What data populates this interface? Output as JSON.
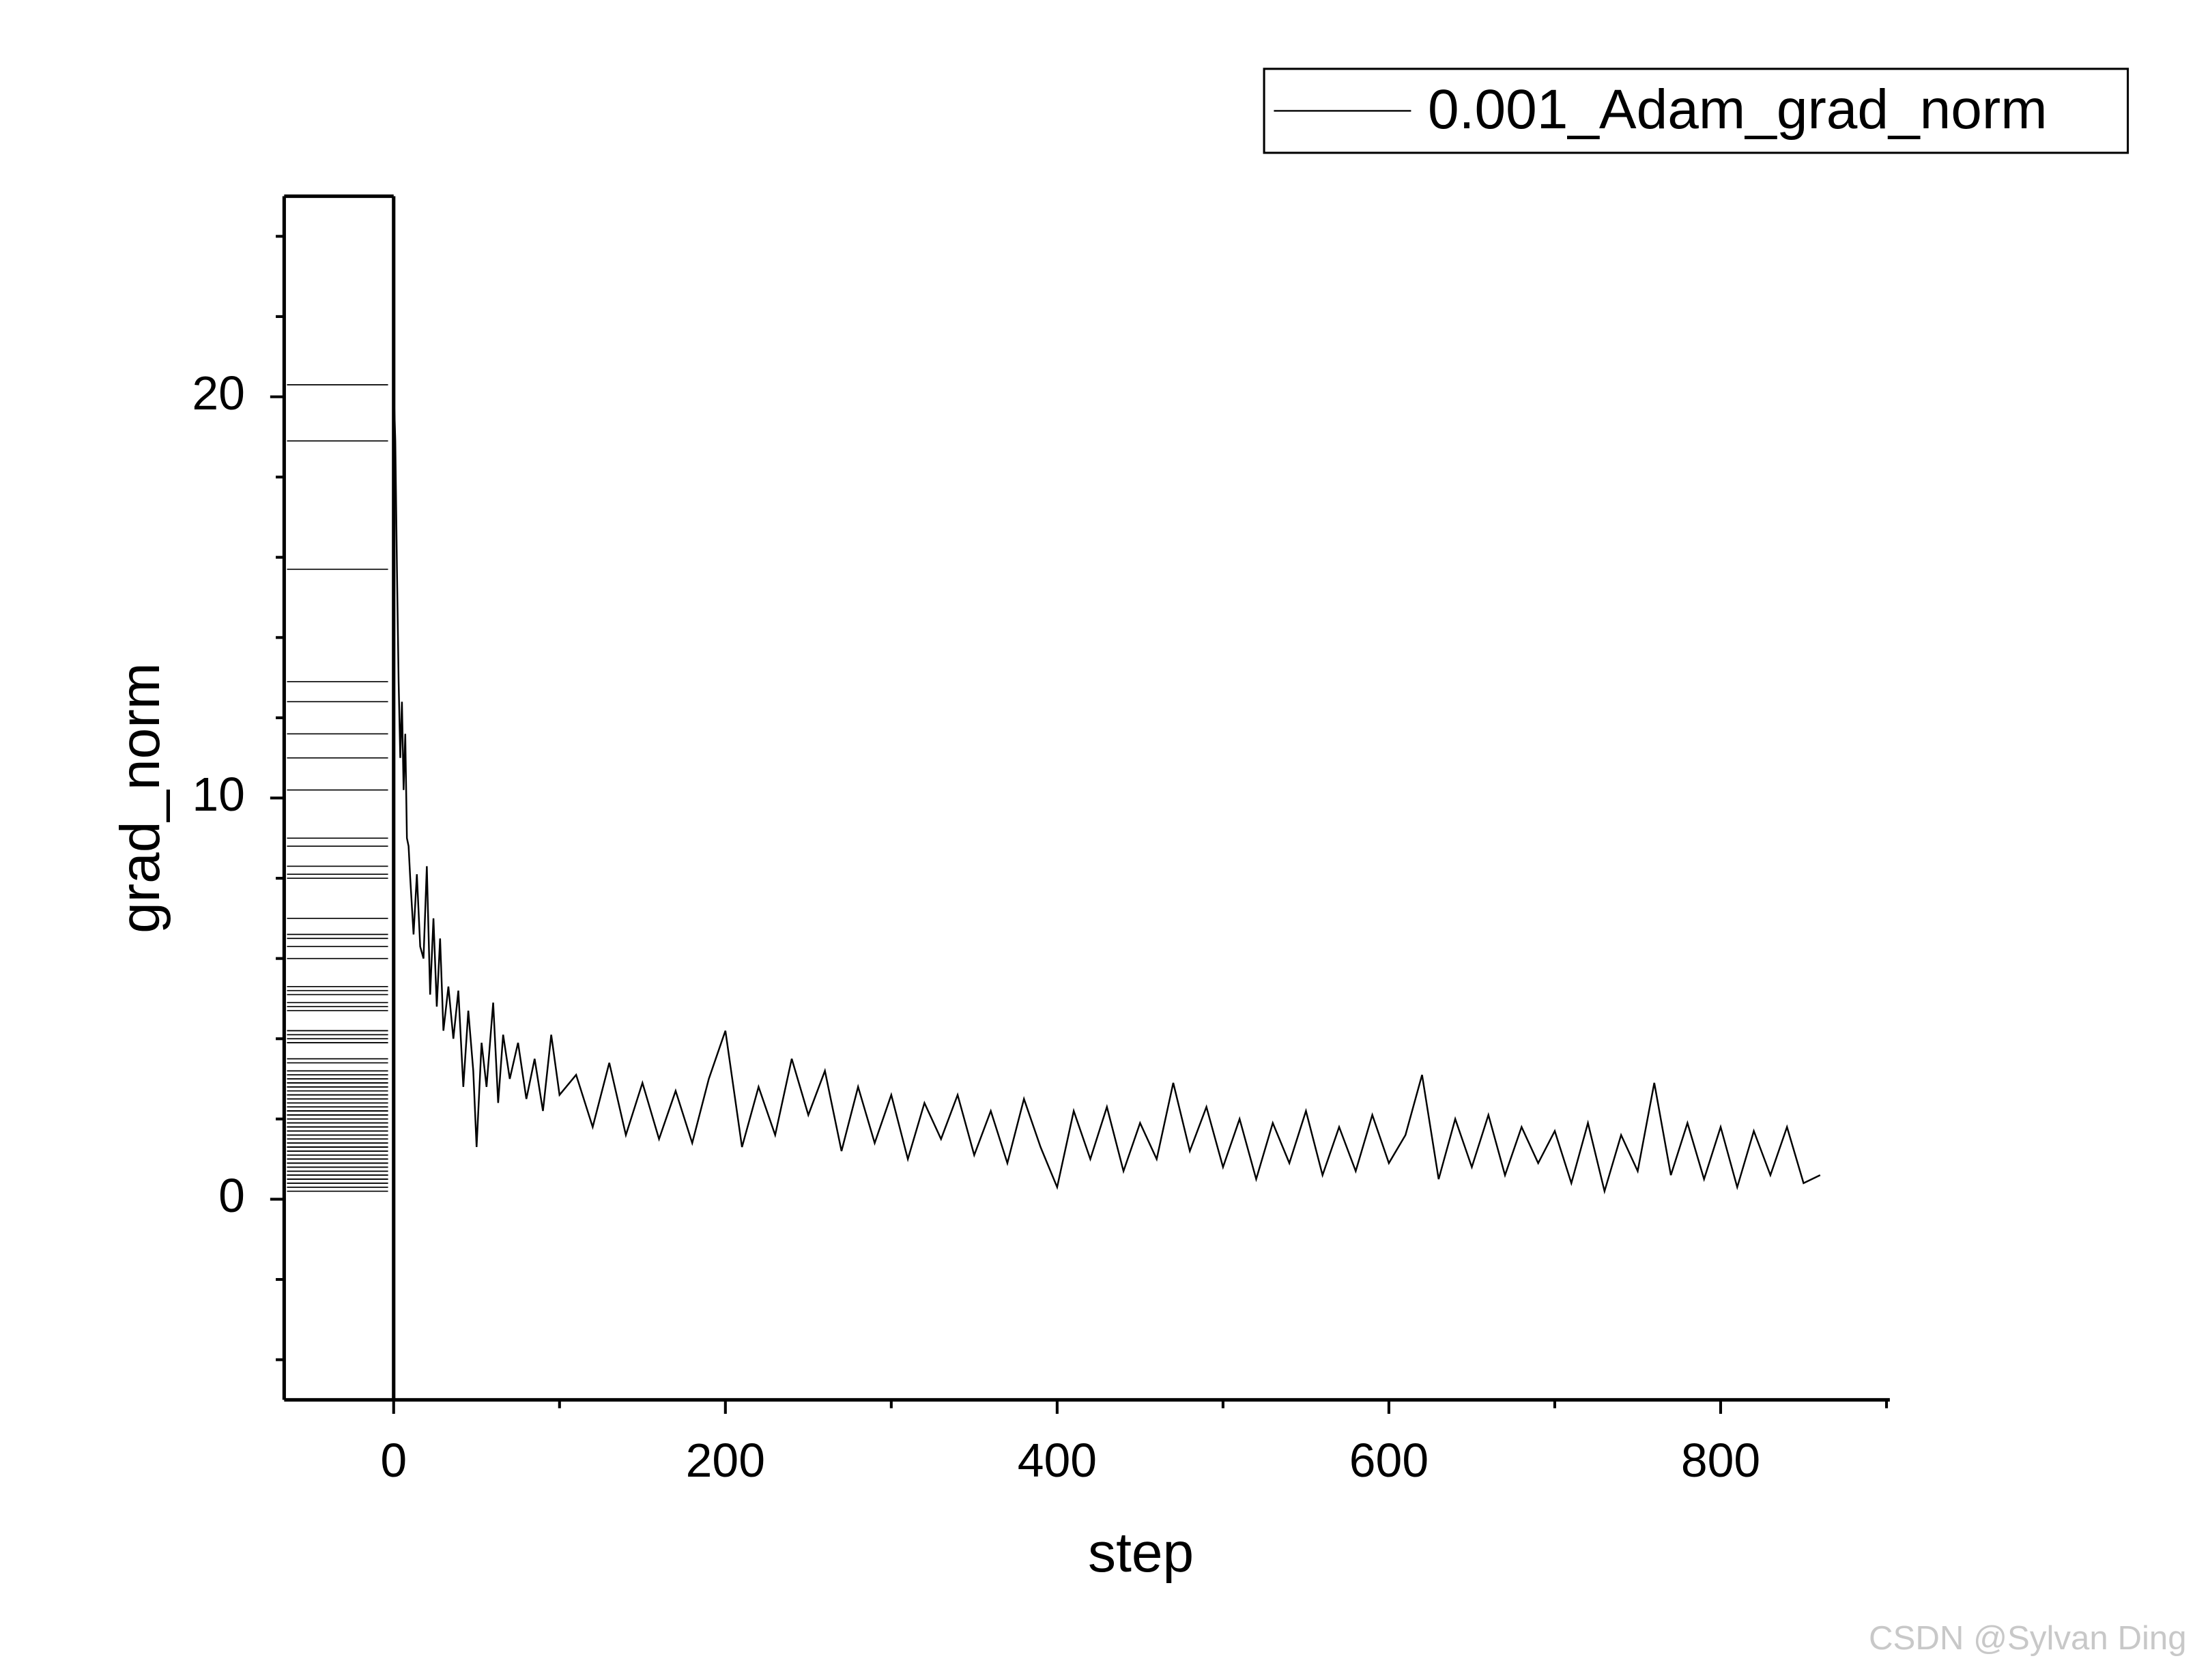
{
  "chart_data": {
    "type": "line",
    "xlabel": "step",
    "ylabel": "grad_norm",
    "xlim": [
      -66,
      902
    ],
    "ylim": [
      -5,
      25
    ],
    "xticks": [
      0,
      200,
      400,
      600,
      800
    ],
    "yticks": [
      0,
      10,
      20
    ],
    "xminorticks": [
      100,
      300,
      500,
      700,
      900
    ],
    "yminorticks": [
      -4,
      -2,
      2,
      4,
      6,
      8,
      12,
      14,
      16,
      18,
      22,
      24
    ],
    "rug": true,
    "legend": "top-right",
    "watermark": "CSDN @Sylvan Ding",
    "series": [
      {
        "name": "0.001_Adam_grad_norm",
        "color": "#000000",
        "x": [
          0,
          1,
          2,
          3,
          4,
          5,
          6,
          7,
          8,
          9,
          10,
          12,
          14,
          16,
          18,
          20,
          22,
          24,
          26,
          28,
          30,
          33,
          36,
          39,
          42,
          45,
          48,
          50,
          53,
          56,
          60,
          63,
          66,
          70,
          75,
          80,
          85,
          90,
          95,
          100,
          110,
          120,
          130,
          140,
          150,
          160,
          170,
          180,
          190,
          200,
          210,
          220,
          230,
          240,
          250,
          260,
          270,
          280,
          290,
          300,
          310,
          320,
          330,
          340,
          350,
          360,
          370,
          380,
          390,
          400,
          410,
          420,
          430,
          440,
          450,
          460,
          470,
          480,
          490,
          500,
          510,
          520,
          530,
          540,
          550,
          560,
          570,
          580,
          590,
          600,
          610,
          620,
          630,
          640,
          650,
          660,
          670,
          680,
          690,
          700,
          710,
          720,
          730,
          740,
          750,
          760,
          770,
          780,
          790,
          800,
          810,
          820,
          830,
          840,
          850,
          860
        ],
        "values": [
          20.3,
          18.9,
          15.7,
          12.9,
          11.0,
          12.4,
          10.2,
          11.6,
          9.0,
          8.8,
          8.0,
          6.6,
          8.1,
          6.3,
          6.0,
          8.3,
          5.1,
          7.0,
          4.8,
          6.5,
          4.2,
          5.3,
          4.0,
          5.2,
          2.8,
          4.7,
          3.2,
          1.3,
          3.9,
          2.8,
          4.9,
          2.4,
          4.1,
          3.0,
          3.9,
          2.5,
          3.5,
          2.2,
          4.1,
          2.6,
          3.1,
          1.8,
          3.4,
          1.6,
          2.9,
          1.5,
          2.7,
          1.4,
          3.0,
          4.2,
          1.3,
          2.8,
          1.6,
          3.5,
          2.1,
          3.2,
          1.2,
          2.8,
          1.4,
          2.6,
          1.0,
          2.4,
          1.5,
          2.6,
          1.1,
          2.2,
          0.9,
          2.5,
          1.3,
          0.3,
          2.2,
          1.0,
          2.3,
          0.7,
          1.9,
          1.0,
          2.9,
          1.2,
          2.3,
          0.8,
          2.0,
          0.5,
          1.9,
          0.9,
          2.2,
          0.6,
          1.8,
          0.7,
          2.1,
          0.9,
          1.6,
          3.1,
          0.5,
          2.0,
          0.8,
          2.1,
          0.6,
          1.8,
          0.9,
          1.7,
          0.4,
          1.9,
          0.2,
          1.6,
          0.7,
          2.9,
          0.6,
          1.9,
          0.5,
          1.8,
          0.3,
          1.7,
          0.6,
          1.8,
          0.4,
          0.6
        ]
      }
    ]
  }
}
